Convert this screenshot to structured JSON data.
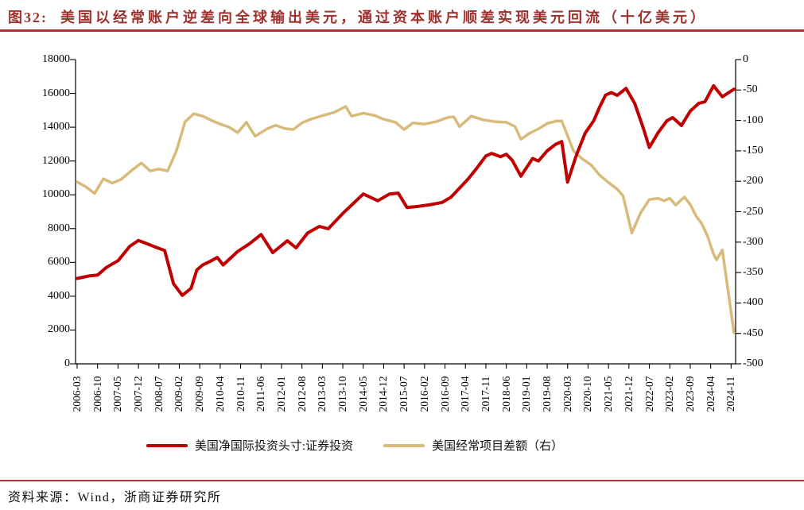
{
  "title": {
    "tag": "图32:",
    "text": "美国以经常账户逆差向全球输出美元，通过资本账户顺差实现美元回流（十亿美元）"
  },
  "footer": {
    "source_label": "资料来源：",
    "source_text": "Wind，浙商证券研究所"
  },
  "colors": {
    "title_red": "#9f312d",
    "rule_red": "#aa3531",
    "line_red": "#c00000",
    "line_tan": "#d8bb7a",
    "axis_black": "#000000"
  },
  "chart_data": {
    "type": "line",
    "title": "美国以经常账户逆差向全球输出美元，通过资本账户顺差实现美元回流（十亿美元）",
    "x_axis": {
      "tick_labels": [
        "2006-03",
        "2006-10",
        "2007-05",
        "2007-12",
        "2008-07",
        "2009-02",
        "2009-09",
        "2010-04",
        "2010-11",
        "2011-06",
        "2012-01",
        "2012-08",
        "2013-03",
        "2013-10",
        "2014-05",
        "2014-12",
        "2015-07",
        "2016-02",
        "2016-09",
        "2017-04",
        "2017-11",
        "2018-06",
        "2019-01",
        "2019-08",
        "2020-03",
        "2020-10",
        "2021-05",
        "2021-12",
        "2022-07",
        "2023-02",
        "2023-09",
        "2024-04",
        "2024-11"
      ],
      "tick_interval_months": 7,
      "range_months": [
        0,
        225
      ]
    },
    "left_axis": {
      "ticks": [
        "18000",
        "16000",
        "14000",
        "12000",
        "10000",
        "8000",
        "6000",
        "4000",
        "2000",
        "0"
      ],
      "range": [
        0,
        18000
      ]
    },
    "right_axis": {
      "ticks": [
        "0",
        "-50",
        "-100",
        "-150",
        "-200",
        "-250",
        "-300",
        "-350",
        "-400",
        "-450",
        "-500"
      ],
      "range": [
        -500,
        0
      ]
    },
    "grid": false,
    "legend_position": "bottom",
    "series": [
      {
        "name": "美国净国际投资头寸:证券投资",
        "axis": "left",
        "color": "#c00000",
        "width": 4,
        "points": [
          [
            0,
            5050
          ],
          [
            4,
            5200
          ],
          [
            7,
            5250
          ],
          [
            10,
            5700
          ],
          [
            14,
            6100
          ],
          [
            18,
            6950
          ],
          [
            21,
            7300
          ],
          [
            24,
            7100
          ],
          [
            27,
            6900
          ],
          [
            30,
            6700
          ],
          [
            33,
            4750
          ],
          [
            36,
            4050
          ],
          [
            39,
            4460
          ],
          [
            41,
            5550
          ],
          [
            43,
            5850
          ],
          [
            46,
            6100
          ],
          [
            48,
            6300
          ],
          [
            50,
            5850
          ],
          [
            55,
            6650
          ],
          [
            59,
            7100
          ],
          [
            63,
            7650
          ],
          [
            67,
            6580
          ],
          [
            72,
            7280
          ],
          [
            75,
            6860
          ],
          [
            79,
            7750
          ],
          [
            83,
            8130
          ],
          [
            86,
            7990
          ],
          [
            91,
            8900
          ],
          [
            98,
            10050
          ],
          [
            103,
            9650
          ],
          [
            107,
            10050
          ],
          [
            110,
            10100
          ],
          [
            113,
            9250
          ],
          [
            117,
            9320
          ],
          [
            121,
            9420
          ],
          [
            125,
            9550
          ],
          [
            128,
            9850
          ],
          [
            131,
            10400
          ],
          [
            134,
            10950
          ],
          [
            137,
            11600
          ],
          [
            140,
            12300
          ],
          [
            142,
            12450
          ],
          [
            145,
            12250
          ],
          [
            147,
            12400
          ],
          [
            149,
            12050
          ],
          [
            152,
            11100
          ],
          [
            156,
            12150
          ],
          [
            158,
            12000
          ],
          [
            161,
            12600
          ],
          [
            164,
            13000
          ],
          [
            166,
            13150
          ],
          [
            168,
            10750
          ],
          [
            171,
            12350
          ],
          [
            174,
            13650
          ],
          [
            177,
            14400
          ],
          [
            179,
            15200
          ],
          [
            181,
            15900
          ],
          [
            183,
            16050
          ],
          [
            185,
            15880
          ],
          [
            188,
            16300
          ],
          [
            191,
            15400
          ],
          [
            194,
            13900
          ],
          [
            196,
            12800
          ],
          [
            199,
            13680
          ],
          [
            202,
            14380
          ],
          [
            204,
            14570
          ],
          [
            207,
            14100
          ],
          [
            210,
            14950
          ],
          [
            213,
            15420
          ],
          [
            215,
            15500
          ],
          [
            218,
            16450
          ],
          [
            221,
            15800
          ],
          [
            225,
            16250
          ]
        ]
      },
      {
        "name": "美国经常项目差额（右）",
        "axis": "right",
        "color": "#d8bb7a",
        "width": 3.5,
        "points": [
          [
            0,
            -201
          ],
          [
            3,
            -209
          ],
          [
            6,
            -220
          ],
          [
            9,
            -196
          ],
          [
            12,
            -203
          ],
          [
            15,
            -197
          ],
          [
            19,
            -181
          ],
          [
            22,
            -170
          ],
          [
            25,
            -183
          ],
          [
            28,
            -180
          ],
          [
            31,
            -183
          ],
          [
            34,
            -150
          ],
          [
            37,
            -102
          ],
          [
            40,
            -89
          ],
          [
            43,
            -93
          ],
          [
            46,
            -100
          ],
          [
            49,
            -106
          ],
          [
            52,
            -111
          ],
          [
            55,
            -120
          ],
          [
            58,
            -103
          ],
          [
            61,
            -126
          ],
          [
            65,
            -114
          ],
          [
            68,
            -108
          ],
          [
            71,
            -113
          ],
          [
            74,
            -115
          ],
          [
            77,
            -104
          ],
          [
            80,
            -98
          ],
          [
            84,
            -92
          ],
          [
            88,
            -87
          ],
          [
            92,
            -77
          ],
          [
            94,
            -93
          ],
          [
            98,
            -88
          ],
          [
            102,
            -92
          ],
          [
            105,
            -98
          ],
          [
            109,
            -103
          ],
          [
            112,
            -115
          ],
          [
            115,
            -104
          ],
          [
            119,
            -106
          ],
          [
            123,
            -102
          ],
          [
            127,
            -95
          ],
          [
            129,
            -94
          ],
          [
            131,
            -110
          ],
          [
            135,
            -93
          ],
          [
            139,
            -99
          ],
          [
            143,
            -102
          ],
          [
            147,
            -103
          ],
          [
            150,
            -110
          ],
          [
            152,
            -131
          ],
          [
            155,
            -121
          ],
          [
            158,
            -114
          ],
          [
            161,
            -105
          ],
          [
            164,
            -101
          ],
          [
            166,
            -101
          ],
          [
            168,
            -125
          ],
          [
            170,
            -150
          ],
          [
            173,
            -163
          ],
          [
            176,
            -173
          ],
          [
            179,
            -190
          ],
          [
            182,
            -202
          ],
          [
            185,
            -213
          ],
          [
            187,
            -224
          ],
          [
            190,
            -285
          ],
          [
            193,
            -252
          ],
          [
            196,
            -230
          ],
          [
            199,
            -228
          ],
          [
            201,
            -232
          ],
          [
            203,
            -228
          ],
          [
            205,
            -239
          ],
          [
            208,
            -226
          ],
          [
            210,
            -238
          ],
          [
            212,
            -257
          ],
          [
            214,
            -270
          ],
          [
            216,
            -291
          ],
          [
            218,
            -320
          ],
          [
            219,
            -329
          ],
          [
            221,
            -313
          ],
          [
            225,
            -449
          ]
        ]
      }
    ]
  }
}
